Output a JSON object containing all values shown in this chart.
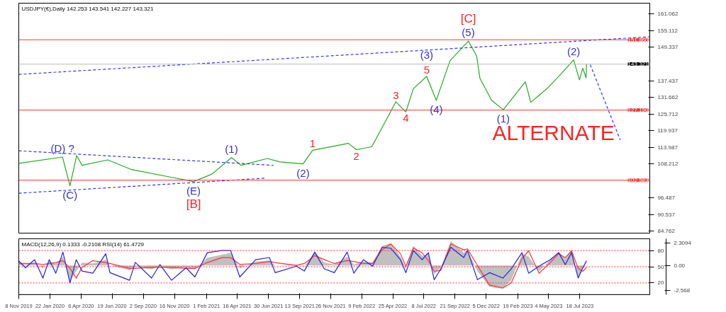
{
  "chart_data": [
    {
      "type": "line",
      "xlim": [
        "2019-11-08",
        "2024-01-02"
      ],
      "ylim": [
        84.0,
        164.7
      ],
      "tick_labels": "y",
      "yticks": [
        161.062,
        155.112,
        149.337,
        137.437,
        131.662,
        125.712,
        119.937,
        113.987,
        108.212,
        96.487,
        90.537,
        84.762
      ],
      "series": [
        {
          "color": "#22aa22",
          "line_style": "solid",
          "x": [
            "2019-11-08",
            "2020-02-21",
            "2020-03-10",
            "2020-03-26",
            "2020-04-08",
            "2020-06-09",
            "2020-08-03",
            "2020-11-12",
            "2021-01-01",
            "2021-02-14",
            "2021-04-02",
            "2021-04-25",
            "2021-06-27",
            "2021-07-28",
            "2021-09-21",
            "2021-10-14",
            "2022-01-08",
            "2022-01-27",
            "2022-03-05",
            "2022-04-12",
            "2022-05-02",
            "2022-05-26",
            "2022-06-13",
            "2022-07-15",
            "2022-08-07",
            "2022-09-09",
            "2022-10-23",
            "2022-11-12",
            "2022-11-20",
            "2022-12-18",
            "2023-01-15",
            "2023-03-09",
            "2023-03-22",
            "2023-04-30",
            "2023-06-05",
            "2023-07-03",
            "2023-07-17",
            "2023-07-25",
            "2023-08-02",
            "2023-08-03"
          ],
          "values": [
            108.5,
            110.7,
            100.6,
            111.2,
            107.8,
            109.7,
            106.4,
            103.5,
            102.1,
            104.7,
            110.5,
            107.8,
            110.2,
            109.0,
            108.3,
            113.1,
            115.5,
            113.3,
            114.3,
            124.6,
            130.1,
            126.5,
            134.7,
            139.0,
            130.6,
            144.5,
            151.4,
            146.2,
            138.3,
            130.6,
            127.3,
            137.1,
            129.9,
            134.7,
            140.2,
            144.8,
            137.8,
            141.9,
            138.5,
            143.3
          ]
        },
        {
          "color": "#3333ff",
          "line_style": "dashed",
          "x": [
            "2019-11-08",
            "2024-01-02"
          ],
          "values": [
            139.7,
            152.9
          ]
        },
        {
          "color": "#3333ff",
          "line_style": "dashed",
          "x": [
            "2019-11-08",
            "2021-07-12"
          ],
          "values": [
            112.9,
            107.8
          ]
        },
        {
          "color": "#3333ff",
          "line_style": "dashed",
          "x": [
            "2019-11-08",
            "2021-06-24"
          ],
          "values": [
            98.0,
            103.3
          ]
        },
        {
          "color": "#3333ff",
          "line_style": "dashed",
          "x": [
            "2023-08-12",
            "2023-10-23"
          ],
          "values": [
            143.1,
            116.7
          ]
        }
      ],
      "ref_lines": [
        {
          "axis": "y",
          "value": 151.86,
          "label": "151.860",
          "color": "#ff3333",
          "line_style": "solid"
        },
        {
          "axis": "y",
          "value": 127.19,
          "label": "127.190",
          "color": "#ff3333",
          "line_style": "solid"
        },
        {
          "axis": "y",
          "value": 102.583,
          "label": "102.583",
          "color": "#ff3333",
          "line_style": "solid"
        },
        {
          "axis": "y",
          "value": 143.321,
          "label": "143.321",
          "color": "#bbbbbb",
          "line_style": "solid"
        }
      ],
      "annotations": [
        "USDJPY(€),Daily  142.253 143.541 142.227 143.321",
        {
          "text": "(C)",
          "x": "2020-03-10",
          "y": 100.6
        },
        {
          "text": "(D) ?",
          "x": "2020-02-21",
          "y": 110.7
        },
        {
          "text": "(E)",
          "x": "2021-01-01",
          "y": 102.1
        },
        {
          "text": "[B]",
          "x": "2021-01-01",
          "y": 102.1
        },
        {
          "text": "(1)",
          "x": "2021-04-02",
          "y": 110.5
        },
        {
          "text": "(2)",
          "x": "2021-09-21",
          "y": 108.3
        },
        {
          "text": "1",
          "x": "2021-10-14",
          "y": 113.1
        },
        {
          "text": "2",
          "x": "2022-01-27",
          "y": 113.3
        },
        {
          "text": "3",
          "x": "2022-05-02",
          "y": 130.1
        },
        {
          "text": "4",
          "x": "2022-05-26",
          "y": 126.5
        },
        {
          "text": "5",
          "x": "2022-07-15",
          "y": 139.0
        },
        {
          "text": "(3)",
          "x": "2022-07-15",
          "y": 139.0
        },
        {
          "text": "(4)",
          "x": "2022-08-07",
          "y": 130.6
        },
        {
          "text": "(5)",
          "x": "2022-10-23",
          "y": 151.4
        },
        {
          "text": "[C]",
          "x": "2022-10-23",
          "y": 151.4
        },
        {
          "text": "(1)",
          "x": "2023-01-15",
          "y": 127.3
        },
        {
          "text": "(2)",
          "x": "2023-07-03",
          "y": 144.8
        },
        {
          "text": "ALTERNATE",
          "x": "2023-10-23",
          "y": 116.7
        }
      ]
    },
    {
      "type": "line",
      "xlim": [
        "2019-11-08",
        "2024-01-02"
      ],
      "ylim": [
        -1.7,
        101.7
      ],
      "y2lim": [
        -2.99,
        2.73
      ],
      "xticks": [
        {
          "value": "2019-11-08",
          "label": "8 Nov 2019"
        },
        {
          "value": "2020-01-22",
          "label": "22 Jan 2020"
        },
        {
          "value": "2020-04-06",
          "label": "6 Apr 2020"
        },
        {
          "value": "2020-06-19",
          "label": "19 Jun 2020"
        },
        {
          "value": "2020-09-02",
          "label": "2 Sep 2020"
        },
        {
          "value": "2020-11-16",
          "label": "16 Nov 2020"
        },
        {
          "value": "2021-02-01",
          "label": "1 Feb 2021"
        },
        {
          "value": "2021-04-16",
          "label": "16 Apr 2021"
        },
        {
          "value": "2021-06-30",
          "label": "30 Jun 2021"
        },
        {
          "value": "2021-09-13",
          "label": "13 Sep 2021"
        },
        {
          "value": "2021-11-26",
          "label": "26 Nov 2021"
        },
        {
          "value": "2022-02-09",
          "label": "9 Feb 2022"
        },
        {
          "value": "2022-04-25",
          "label": "25 Apr 2022"
        },
        {
          "value": "2022-07-08",
          "label": "8 Jul 2022"
        },
        {
          "value": "2022-09-21",
          "label": "21 Sep 2022"
        },
        {
          "value": "2022-12-05",
          "label": "5 Dec 2022"
        },
        {
          "value": "2023-02-19",
          "label": "19 Feb 2023"
        },
        {
          "value": "2023-05-04",
          "label": "4 May 2023"
        },
        {
          "value": "2023-07-18",
          "label": "18 Jul 2023"
        }
      ],
      "yticks": [
        80,
        50,
        20
      ],
      "y2ticks": [
        2.3094,
        {
          "value": 0,
          "label": "0.00"
        },
        -2.568
      ],
      "x": [
        "2019-11-08",
        "2019-11-24",
        "2019-12-16",
        "2020-01-05",
        "2020-01-20",
        "2020-02-05",
        "2020-02-22",
        "2020-03-10",
        "2020-03-25",
        "2020-04-08",
        "2020-05-04",
        "2020-06-04",
        "2020-06-14",
        "2020-07-31",
        "2020-08-14",
        "2020-09-22",
        "2020-10-12",
        "2020-11-09",
        "2020-12-14",
        "2021-01-04",
        "2021-02-03",
        "2021-03-10",
        "2021-03-31",
        "2021-04-22",
        "2021-05-30",
        "2021-07-02",
        "2021-07-16",
        "2021-09-05",
        "2021-09-24",
        "2021-10-19",
        "2021-11-11",
        "2021-12-05",
        "2022-01-05",
        "2022-01-21",
        "2022-02-13",
        "2022-03-07",
        "2022-03-30",
        "2022-04-20",
        "2022-05-13",
        "2022-05-26",
        "2022-06-13",
        "2022-07-04",
        "2022-07-19",
        "2022-08-02",
        "2022-08-18",
        "2022-09-11",
        "2022-10-12",
        "2022-10-21",
        "2022-11-14",
        "2022-12-13",
        "2023-01-14",
        "2023-02-03",
        "2023-03-01",
        "2023-03-17",
        "2023-04-11",
        "2023-05-08",
        "2023-05-28",
        "2023-06-13",
        "2023-06-28",
        "2023-07-14",
        "2023-07-25",
        "2023-08-03"
      ],
      "series": [
        {
          "type": "area",
          "axis": "y2",
          "color": "#c0c0c0",
          "values": [
            0.3,
            0.1,
            0.3,
            -0.3,
            0.4,
            0.2,
            0.9,
            -1.6,
            -0.6,
            0.3,
            0.2,
            0.6,
            0.0,
            -0.5,
            -0.1,
            -0.4,
            -0.1,
            -0.4,
            -0.2,
            -0.4,
            0.8,
            1.1,
            1.3,
            -0.3,
            0.4,
            0.5,
            0.0,
            0.1,
            -0.1,
            1.4,
            0.3,
            0.1,
            0.9,
            0.1,
            0.4,
            0.3,
            2.0,
            2.3,
            0.9,
            -0.3,
            2.0,
            1.0,
            1.2,
            -0.9,
            -0.2,
            2.5,
            1.3,
            1.6,
            -0.6,
            -2.2,
            -2.4,
            -1.5,
            1.2,
            0.9,
            -0.6,
            0.6,
            1.4,
            0.7,
            1.6,
            -1.2,
            -0.4,
            0.13
          ]
        },
        {
          "axis": "y2",
          "color": "#ff3333",
          "line_style": "solid",
          "values": [
            0.2,
            0.2,
            0.2,
            0.1,
            0.2,
            0.3,
            0.5,
            -0.3,
            -1.3,
            -0.2,
            0.5,
            0.3,
            0.2,
            -0.3,
            -0.3,
            -0.2,
            -0.2,
            -0.2,
            -0.3,
            -0.3,
            0.3,
            0.8,
            0.8,
            0.1,
            0.2,
            0.4,
            0.3,
            0.0,
            0.2,
            1.0,
            0.6,
            0.2,
            0.5,
            0.4,
            0.2,
            0.2,
            1.6,
            2.2,
            1.2,
            -0.1,
            1.8,
            1.3,
            0.5,
            -0.6,
            -0.5,
            2.2,
            1.6,
            1.7,
            0.0,
            -2.0,
            -2.3,
            -1.8,
            0.7,
            1.5,
            -0.8,
            0.3,
            1.2,
            0.8,
            1.5,
            -0.3,
            -0.6,
            -0.21
          ]
        },
        {
          "color": "#2222dd",
          "line_style": "solid",
          "values": [
            61,
            48,
            63,
            29,
            63,
            38,
            77,
            20,
            63,
            42,
            38,
            74,
            39,
            25,
            58,
            29,
            54,
            25,
            48,
            31,
            76,
            80,
            80,
            31,
            63,
            67,
            39,
            51,
            42,
            77,
            46,
            39,
            77,
            38,
            63,
            51,
            86,
            84,
            63,
            39,
            80,
            63,
            76,
            26,
            46,
            86,
            67,
            80,
            26,
            39,
            29,
            46,
            76,
            38,
            51,
            63,
            76,
            54,
            76,
            29,
            48,
            61
          ]
        }
      ],
      "ref_lines": [
        {
          "axis": "y",
          "value": 80,
          "color": "#ff3333",
          "line_style": "dotted"
        },
        {
          "axis": "y",
          "value": 50,
          "color": "#ff3333",
          "line_style": "dotted"
        },
        {
          "axis": "y",
          "value": 20,
          "color": "#ff3333",
          "line_style": "dotted"
        }
      ],
      "annotations": [
        "MACD(12,26,9) 0.1333 -0.2108 RSI(14) 61.4729"
      ]
    }
  ]
}
